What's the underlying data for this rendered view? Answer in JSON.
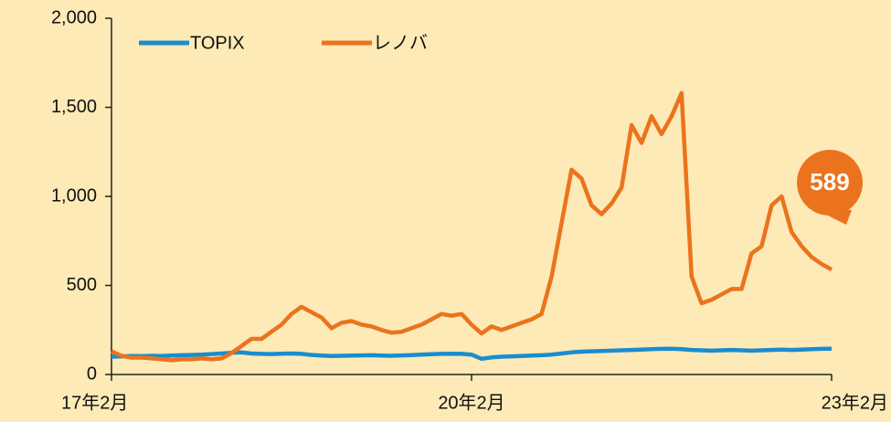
{
  "chart_data": {
    "type": "line",
    "categories": [
      "17年2月",
      null,
      null,
      null,
      null,
      null,
      null,
      null,
      null,
      null,
      null,
      null,
      null,
      null,
      null,
      null,
      null,
      null,
      null,
      null,
      null,
      null,
      null,
      null,
      null,
      null,
      null,
      null,
      null,
      null,
      null,
      null,
      null,
      null,
      null,
      null,
      "20年2月",
      null,
      null,
      null,
      null,
      null,
      null,
      null,
      null,
      null,
      null,
      null,
      null,
      null,
      null,
      null,
      null,
      null,
      null,
      null,
      null,
      null,
      null,
      null,
      null,
      null,
      null,
      null,
      null,
      null,
      null,
      null,
      null,
      null,
      null,
      null,
      "23年2月"
    ],
    "series": [
      {
        "name": "TOPIX",
        "color": "#1a8ccf",
        "values": [
          100,
          102,
          104,
          103,
          105,
          104,
          106,
          108,
          110,
          112,
          115,
          118,
          122,
          124,
          118,
          116,
          115,
          117,
          118,
          116,
          110,
          106,
          104,
          105,
          106,
          107,
          108,
          106,
          105,
          107,
          109,
          112,
          114,
          116,
          117,
          116,
          112,
          88,
          96,
          100,
          102,
          104,
          106,
          108,
          112,
          118,
          124,
          128,
          130,
          132,
          134,
          136,
          138,
          140,
          142,
          144,
          145,
          142,
          138,
          136,
          134,
          136,
          138,
          136,
          134,
          136,
          138,
          140,
          138,
          140,
          142,
          144,
          145
        ]
      },
      {
        "name": "レノバ",
        "color": "#eb731e",
        "values": [
          130,
          105,
          95,
          95,
          90,
          85,
          80,
          85,
          85,
          90,
          85,
          90,
          120,
          160,
          200,
          200,
          240,
          280,
          340,
          380,
          350,
          320,
          260,
          290,
          300,
          280,
          270,
          250,
          235,
          240,
          260,
          280,
          310,
          340,
          330,
          340,
          280,
          230,
          270,
          250,
          270,
          290,
          310,
          340,
          550,
          850,
          1150,
          1100,
          950,
          900,
          960,
          1050,
          1400,
          1300,
          1450,
          1350,
          1450,
          1580,
          550,
          400,
          420,
          450,
          480,
          480,
          680,
          720,
          950,
          1000,
          800,
          720,
          660,
          620,
          589
        ]
      }
    ],
    "ylim": [
      0,
      2000
    ],
    "yticks": [
      0,
      500,
      {
        "value": 1000,
        "label": "1,000"
      },
      {
        "value": 1500,
        "label": "1,500"
      },
      {
        "value": 2000,
        "label": "2,000"
      }
    ],
    "legend": "upper left"
  }
}
